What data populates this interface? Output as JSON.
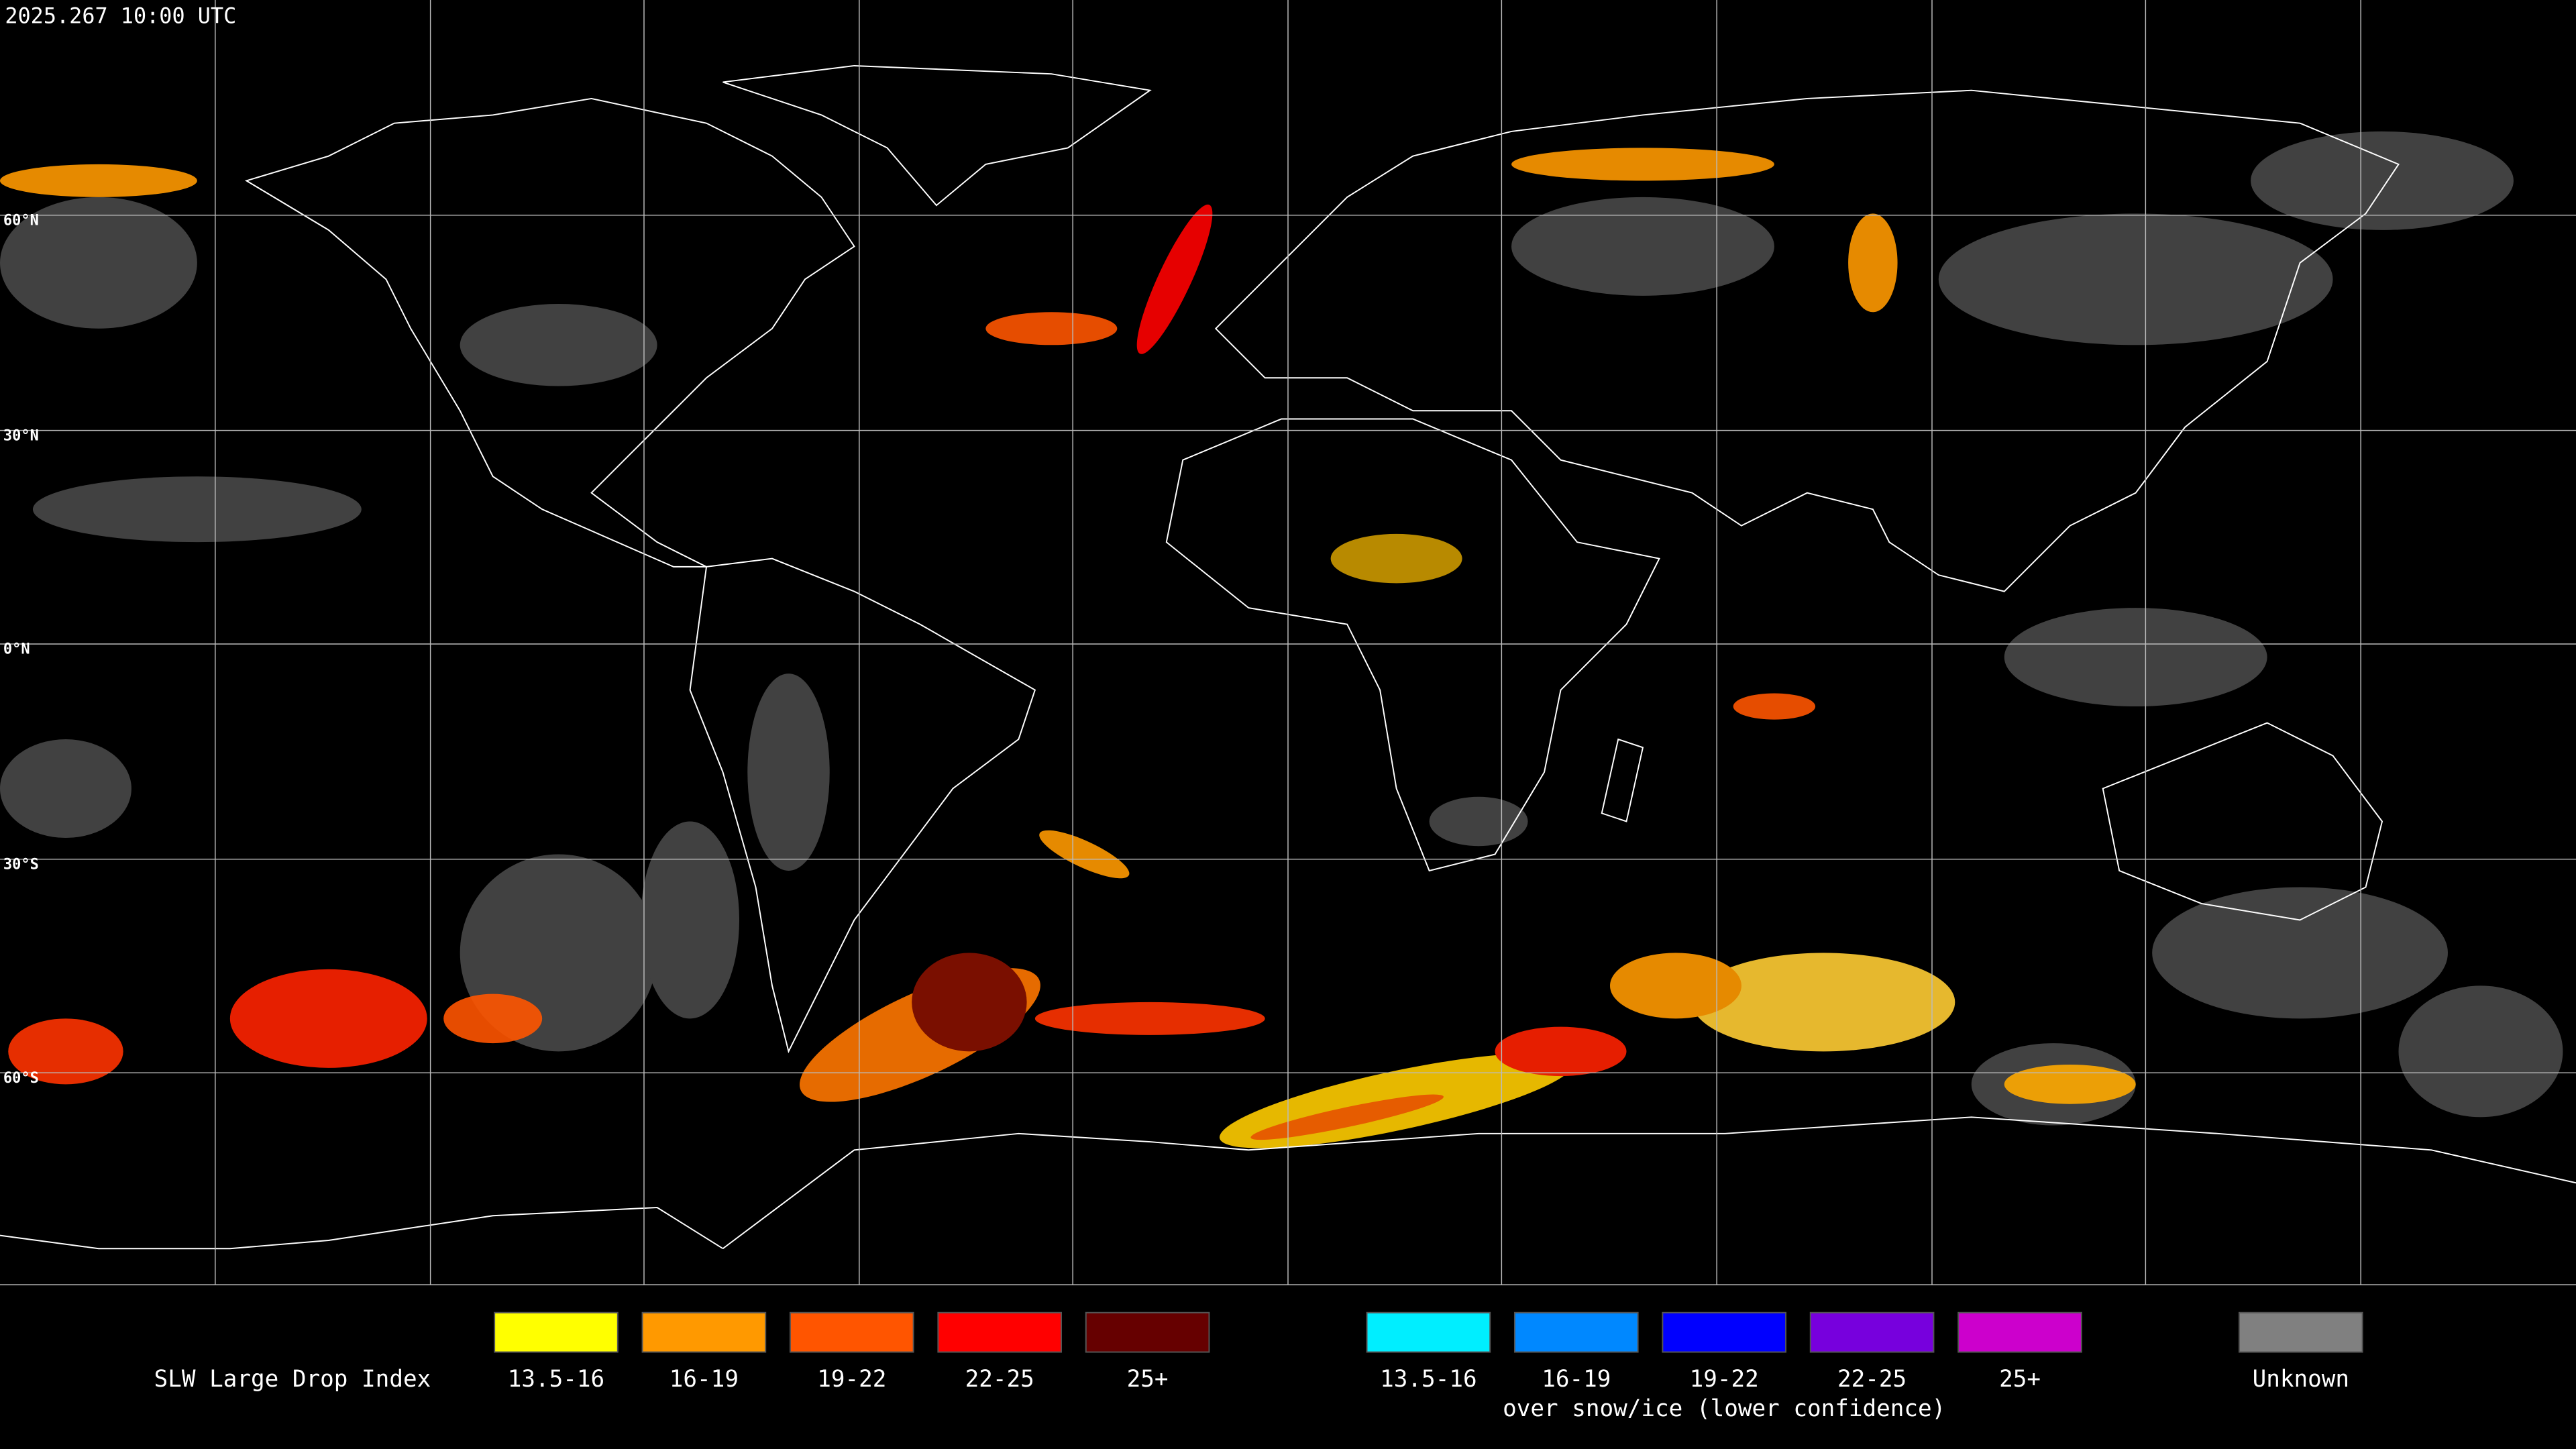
{
  "header": {
    "timestamp": "2025.267 10:00 UTC"
  },
  "map": {
    "latitude_labels": [
      "60°N",
      "30°N",
      "0°N",
      "30°S",
      "60°S"
    ]
  },
  "legend": {
    "title": "SLW Large Drop Index",
    "groups": [
      {
        "items": [
          {
            "label": "13.5-16",
            "color": "#ffff00"
          },
          {
            "label": "16-19",
            "color": "#ff9900"
          },
          {
            "label": "19-22",
            "color": "#ff5500"
          },
          {
            "label": "22-25",
            "color": "#ff0000"
          },
          {
            "label": "25+",
            "color": "#660000"
          }
        ]
      },
      {
        "items": [
          {
            "label": "13.5-16",
            "color": "#00eeff"
          },
          {
            "label": "16-19",
            "color": "#0088ff"
          },
          {
            "label": "19-22",
            "color": "#0000ff"
          },
          {
            "label": "22-25",
            "color": "#7700dd"
          },
          {
            "label": "25+",
            "color": "#cc00cc"
          }
        ],
        "caption": "over snow/ice (lower confidence)"
      },
      {
        "items": [
          {
            "label": "Unknown",
            "color": "#808080"
          }
        ]
      }
    ]
  }
}
